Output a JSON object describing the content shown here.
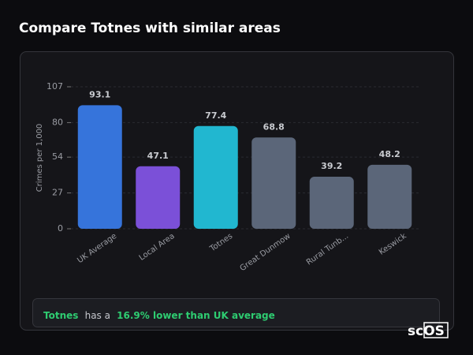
{
  "chart_data": {
    "type": "bar",
    "title": "Compare Totnes with similar areas",
    "y_label": "Crimes per 1,000",
    "categories": [
      "UK Average",
      "Local Area",
      "Totnes",
      "Great Dunmow",
      "Rural Tunb...",
      "Keswick"
    ],
    "values": [
      93.1,
      47.1,
      77.4,
      68.8,
      39.2,
      48.2
    ],
    "colors": [
      "#3674db",
      "#7b50d8",
      "#21b7d0",
      "#5b6679",
      "#5b6679",
      "#5b6679"
    ],
    "ylim": [
      0,
      107
    ],
    "yticks": [
      0,
      27,
      54,
      80,
      107
    ],
    "grid": true
  },
  "summary": {
    "area": "Totnes",
    "text": "has a",
    "highlight": "16.9% lower than UK average"
  },
  "logo": "scOS"
}
